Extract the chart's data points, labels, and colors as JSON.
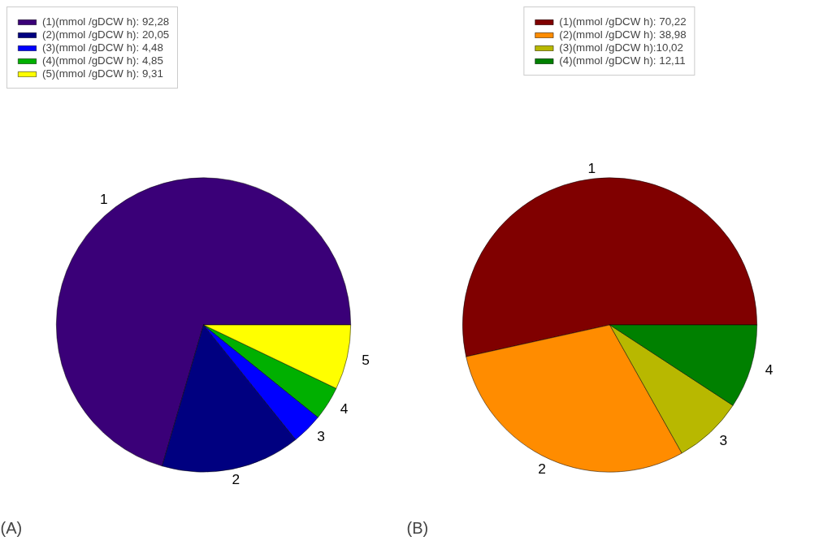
{
  "chart_data": [
    {
      "type": "pie",
      "title": "(A)",
      "categories": [
        "(1)(mmol /gDCW h): 92,28",
        "(2)(mmol /gDCW h): 20,05",
        "(3)(mmol /gDCW h): 4,48",
        "(4)(mmol /gDCW h): 4,85",
        "(5)(mmol /gDCW h): 9,31"
      ],
      "values": [
        92.28,
        20.05,
        4.48,
        4.85,
        9.31
      ],
      "colors": [
        "#3a0078",
        "#000080",
        "#0000ff",
        "#00b000",
        "#ffff00"
      ],
      "annotations": [
        "1",
        "2",
        "3",
        "4",
        "5"
      ],
      "legend": "top left"
    },
    {
      "type": "pie",
      "title": "(B)",
      "categories": [
        "(1)(mmol /gDCW h): 70,22",
        "(2)(mmol /gDCW h): 38,98",
        "(3)(mmol /gDCW h):10,02",
        "(4)(mmol /gDCW h): 12,11"
      ],
      "values": [
        70.22,
        38.98,
        10.02,
        12.11
      ],
      "colors": [
        "#800000",
        "#ff8c00",
        "#b8b800",
        "#008000"
      ],
      "annotations": [
        "1",
        "2",
        "3",
        "4"
      ],
      "legend": "top"
    }
  ]
}
